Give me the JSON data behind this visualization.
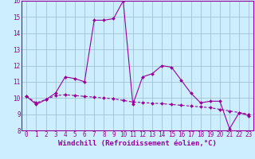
{
  "xlabel": "Windchill (Refroidissement éolien,°C)",
  "background_color": "#cceeff",
  "line_color": "#990099",
  "grid_color": "#99bbcc",
  "xlim": [
    -0.5,
    23.5
  ],
  "ylim": [
    8,
    16
  ],
  "xticks": [
    0,
    1,
    2,
    3,
    4,
    5,
    6,
    7,
    8,
    9,
    10,
    11,
    12,
    13,
    14,
    15,
    16,
    17,
    18,
    19,
    20,
    21,
    22,
    23
  ],
  "yticks": [
    8,
    9,
    10,
    11,
    12,
    13,
    14,
    15,
    16
  ],
  "line1_x": [
    0,
    1,
    2,
    3,
    4,
    5,
    6,
    7,
    8,
    9,
    10,
    11,
    12,
    13,
    14,
    15,
    16,
    17,
    18,
    19,
    20,
    21,
    22,
    23
  ],
  "line1_y": [
    10.1,
    9.6,
    9.9,
    10.3,
    11.3,
    11.2,
    11.0,
    14.8,
    14.8,
    14.9,
    16.0,
    9.6,
    11.3,
    11.5,
    12.0,
    11.9,
    11.1,
    10.3,
    9.7,
    9.8,
    9.8,
    8.1,
    9.1,
    8.9
  ],
  "line2_x": [
    0,
    1,
    2,
    3,
    4,
    5,
    6,
    7,
    8,
    9,
    10,
    11,
    12,
    13,
    14,
    15,
    16,
    17,
    18,
    19,
    20,
    21,
    22,
    23
  ],
  "line2_y": [
    10.1,
    9.7,
    9.9,
    10.15,
    10.2,
    10.15,
    10.1,
    10.05,
    10.0,
    9.95,
    9.85,
    9.75,
    9.72,
    9.68,
    9.65,
    9.6,
    9.55,
    9.5,
    9.45,
    9.4,
    9.3,
    9.2,
    9.1,
    9.0
  ],
  "marker": "D",
  "markersize": 2.0,
  "linewidth": 0.8,
  "tick_fontsize": 5.5,
  "xlabel_fontsize": 6.5
}
